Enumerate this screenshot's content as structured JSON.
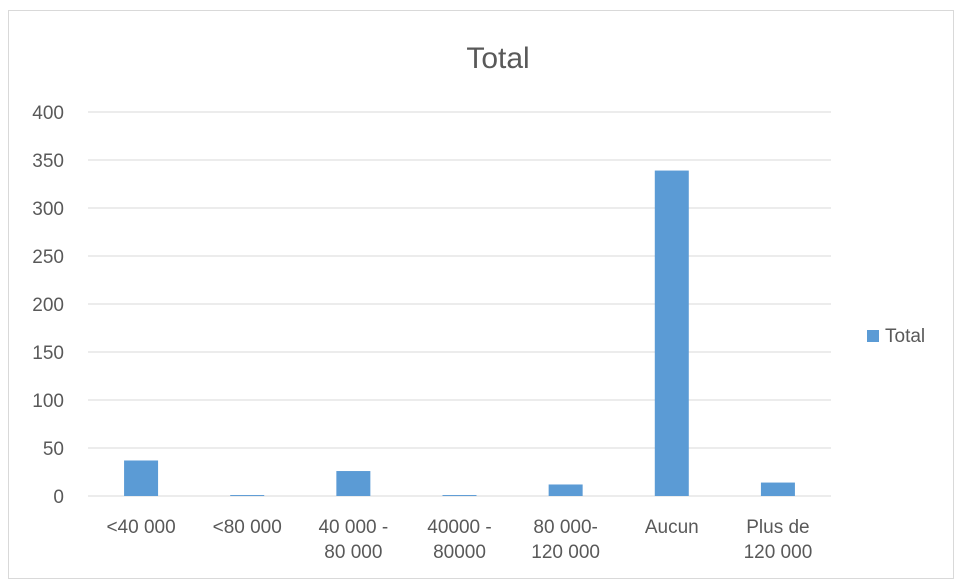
{
  "chart_data": {
    "type": "bar",
    "title": "Total",
    "categories": [
      [
        "<40 000"
      ],
      [
        "<80 000"
      ],
      [
        "40 000 -",
        "80 000"
      ],
      [
        "40000 -",
        "80000"
      ],
      [
        "80 000-",
        "120 000"
      ],
      [
        "Aucun"
      ],
      [
        "Plus de",
        "120 000"
      ]
    ],
    "series": [
      {
        "name": "Total",
        "values": [
          37,
          1,
          26,
          1,
          12,
          339,
          14
        ]
      }
    ],
    "yticks": [
      0,
      50,
      100,
      150,
      200,
      250,
      300,
      350,
      400
    ],
    "ylim": [
      0,
      400
    ],
    "grid": true,
    "legend_position": "right",
    "colors": {
      "bar": "#5b9bd5",
      "grid": "#d9d9d9",
      "text": "#595959",
      "border": "#d9d9d9"
    }
  }
}
